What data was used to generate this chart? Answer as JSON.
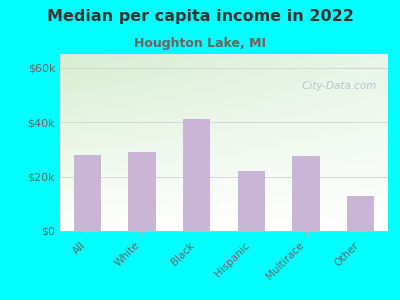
{
  "title": "Median per capita income in 2022",
  "subtitle": "Houghton Lake, MI",
  "categories": [
    "All",
    "White",
    "Black",
    "Hispanic",
    "Multirace",
    "Other"
  ],
  "values": [
    28000,
    29000,
    41000,
    22000,
    27500,
    13000
  ],
  "bar_color": "#c9b5d5",
  "background_outer": "#00ffff",
  "background_inner_topleft": "#d6eecf",
  "background_inner_topright": "#e8f5e8",
  "background_inner_bottom": "#ffffff",
  "title_color": "#333333",
  "subtitle_color": "#7a5c5c",
  "tick_label_color": "#666666",
  "ylabel_ticks": [
    "$0",
    "$20k",
    "$40k",
    "$60k"
  ],
  "ylabel_values": [
    0,
    20000,
    40000,
    60000
  ],
  "ylim": [
    0,
    65000
  ],
  "watermark": " City-Data.com"
}
